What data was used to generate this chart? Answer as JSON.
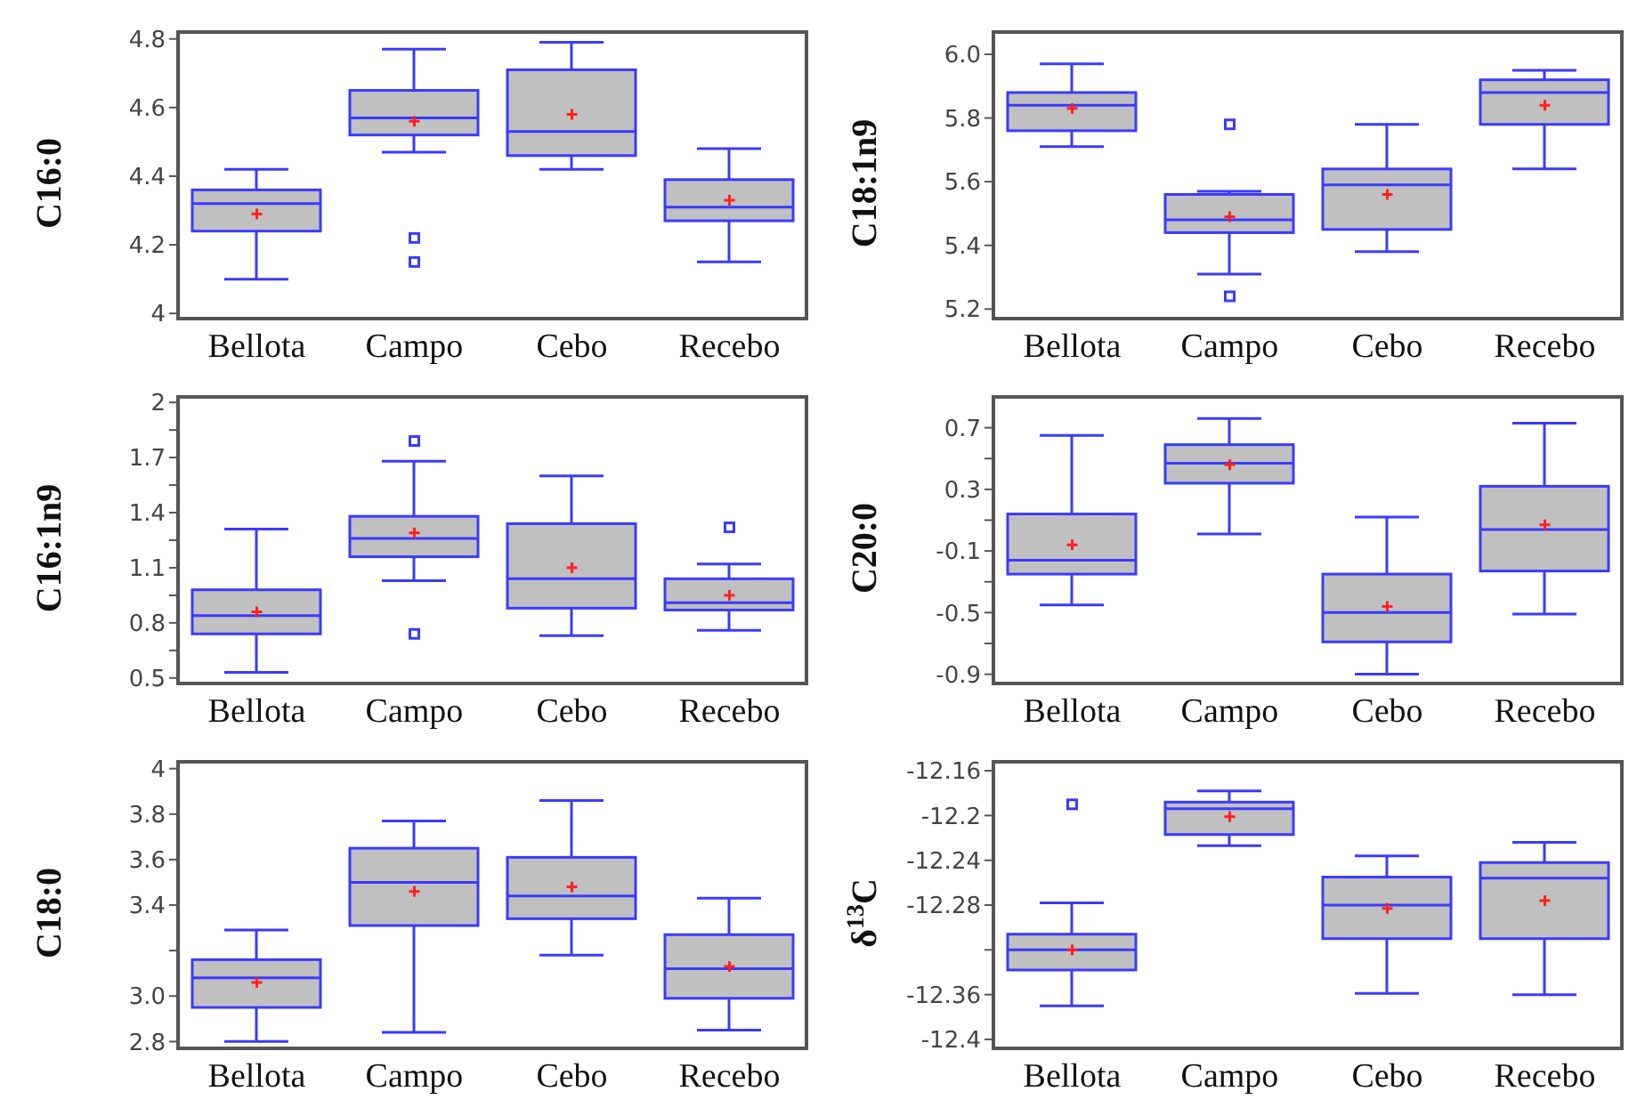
{
  "chart_data": [
    {
      "type": "box",
      "ylabel": "C16:0",
      "categories": [
        "Bellota",
        "Campo",
        "Cebo",
        "Recebo"
      ],
      "color": "#3a3aff",
      "ylim": [
        3.985,
        4.82
      ],
      "yticks": [
        4.0,
        4.2,
        4.4,
        4.6,
        4.8
      ],
      "grid": false,
      "boxes": [
        {
          "low": 4.1,
          "q1": 4.24,
          "median": 4.32,
          "q3": 4.36,
          "high": 4.42,
          "mean": 4.29
        },
        {
          "low": 4.47,
          "q1": 4.52,
          "median": 4.57,
          "q3": 4.65,
          "high": 4.77,
          "mean": 4.56,
          "outliers": [
            4.22,
            4.15
          ]
        },
        {
          "low": 4.42,
          "q1": 4.46,
          "median": 4.53,
          "q3": 4.71,
          "high": 4.79,
          "mean": 4.58
        },
        {
          "low": 4.15,
          "q1": 4.27,
          "median": 4.31,
          "q3": 4.39,
          "high": 4.48,
          "mean": 4.33
        }
      ]
    },
    {
      "type": "box",
      "ylabel": "C18:1n9",
      "categories": [
        "Bellota",
        "Campo",
        "Cebo",
        "Recebo"
      ],
      "color": "#3a3aff",
      "ylim": [
        5.17,
        6.07
      ],
      "yticks": [
        5.2,
        5.4,
        5.6,
        5.8,
        {
          "value": 6.0,
          "label": "6.0"
        }
      ],
      "grid": false,
      "boxes": [
        {
          "low": 5.71,
          "q1": 5.76,
          "median": 5.84,
          "q3": 5.88,
          "high": 5.97,
          "mean": 5.83
        },
        {
          "low": 5.31,
          "q1": 5.44,
          "median": 5.48,
          "q3": 5.56,
          "high": 5.57,
          "mean": 5.49,
          "outliers": [
            5.78,
            5.24
          ]
        },
        {
          "low": 5.38,
          "q1": 5.45,
          "median": 5.59,
          "q3": 5.64,
          "high": 5.78,
          "mean": 5.56
        },
        {
          "low": 5.64,
          "q1": 5.78,
          "median": 5.88,
          "q3": 5.92,
          "high": 5.95,
          "mean": 5.84
        }
      ]
    },
    {
      "type": "box",
      "ylabel": "C16:1n9",
      "categories": [
        "Bellota",
        "Campo",
        "Cebo",
        "Recebo"
      ],
      "color": "#3a3aff",
      "ylim": [
        0.47,
        2.03
      ],
      "yticks": [
        0.5,
        {
          "value": 0.65,
          "label": null
        },
        0.8,
        {
          "value": 0.95,
          "label": null
        },
        1.1,
        {
          "value": 1.25,
          "label": null
        },
        1.4,
        {
          "value": 1.55,
          "label": null
        },
        1.7,
        {
          "value": 1.85,
          "label": null
        },
        2
      ],
      "grid": false,
      "boxes": [
        {
          "low": 0.53,
          "q1": 0.74,
          "median": 0.84,
          "q3": 0.98,
          "high": 1.31,
          "mean": 0.86
        },
        {
          "low": 1.03,
          "q1": 1.16,
          "median": 1.26,
          "q3": 1.38,
          "high": 1.68,
          "mean": 1.29,
          "outliers": [
            1.79,
            0.74
          ]
        },
        {
          "low": 0.73,
          "q1": 0.88,
          "median": 1.04,
          "q3": 1.34,
          "high": 1.6,
          "mean": 1.1
        },
        {
          "low": 0.76,
          "q1": 0.87,
          "median": 0.91,
          "q3": 1.04,
          "high": 1.12,
          "mean": 0.95,
          "outliers": [
            1.32
          ]
        }
      ]
    },
    {
      "type": "box",
      "ylabel": "C20:0",
      "categories": [
        "Bellota",
        "Campo",
        "Cebo",
        "Recebo"
      ],
      "color": "#3a3aff",
      "ylim": [
        -0.96,
        0.9
      ],
      "yticks": [
        {
          "value": -0.9,
          "label": "-0.9"
        },
        {
          "value": -0.7,
          "label": null
        },
        {
          "value": -0.5,
          "label": "-0.5"
        },
        {
          "value": -0.3,
          "label": null
        },
        {
          "value": -0.1,
          "label": "-0.1"
        },
        {
          "value": 0.1,
          "label": null
        },
        0.3,
        {
          "value": 0.5,
          "label": null
        },
        0.7
      ],
      "grid": false,
      "boxes": [
        {
          "low": -0.45,
          "q1": -0.25,
          "median": -0.16,
          "q3": 0.14,
          "high": 0.65,
          "mean": -0.06
        },
        {
          "low": 0.01,
          "q1": 0.34,
          "median": 0.47,
          "q3": 0.59,
          "high": 0.76,
          "mean": 0.46
        },
        {
          "low": -0.9,
          "q1": -0.69,
          "median": -0.5,
          "q3": -0.25,
          "high": 0.12,
          "mean": -0.46
        },
        {
          "low": -0.51,
          "q1": -0.23,
          "median": 0.04,
          "q3": 0.32,
          "high": 0.73,
          "mean": 0.07
        }
      ]
    },
    {
      "type": "box",
      "ylabel": "C18:0",
      "categories": [
        "Bellota",
        "Campo",
        "Cebo",
        "Recebo"
      ],
      "color": "#3a3aff",
      "ylim": [
        2.77,
        4.03
      ],
      "yticks": [
        2.8,
        {
          "value": 3.0,
          "label": "3.0"
        },
        {
          "value": 3.2,
          "label": null
        },
        3.4,
        3.6,
        3.8,
        {
          "value": 4.0,
          "label": "4"
        }
      ],
      "grid": false,
      "boxes": [
        {
          "low": 2.8,
          "q1": 2.95,
          "median": 3.08,
          "q3": 3.16,
          "high": 3.29,
          "mean": 3.06
        },
        {
          "low": 2.84,
          "q1": 3.31,
          "median": 3.5,
          "q3": 3.65,
          "high": 3.77,
          "mean": 3.46
        },
        {
          "low": 3.18,
          "q1": 3.34,
          "median": 3.44,
          "q3": 3.61,
          "high": 3.86,
          "mean": 3.48
        },
        {
          "low": 2.85,
          "q1": 2.99,
          "median": 3.12,
          "q3": 3.27,
          "high": 3.43,
          "mean": 3.13
        }
      ]
    },
    {
      "type": "box",
      "ylabel": "δ$^{13}$C",
      "categories": [
        "Bellota",
        "Campo",
        "Cebo",
        "Recebo"
      ],
      "color": "#3a3aff",
      "ylim": [
        -12.408,
        -12.152
      ],
      "yticks": [
        {
          "value": -12.4,
          "label": "-12.4"
        },
        {
          "value": -12.36,
          "label": "-12.36"
        },
        {
          "value": -12.32,
          "label": null
        },
        {
          "value": -12.28,
          "label": "-12.28"
        },
        {
          "value": -12.24,
          "label": "-12.24"
        },
        {
          "value": -12.2,
          "label": "-12.2"
        },
        {
          "value": -12.16,
          "label": "-12.16"
        }
      ],
      "grid": false,
      "boxes": [
        {
          "low": -12.37,
          "q1": -12.338,
          "median": -12.32,
          "q3": -12.306,
          "high": -12.278,
          "mean": -12.32,
          "outliers": [
            -12.19
          ]
        },
        {
          "low": -12.227,
          "q1": -12.217,
          "median": -12.194,
          "q3": -12.188,
          "high": -12.178,
          "mean": -12.201
        },
        {
          "low": -12.359,
          "q1": -12.31,
          "median": -12.28,
          "q3": -12.255,
          "high": -12.236,
          "mean": -12.283
        },
        {
          "low": -12.36,
          "q1": -12.31,
          "median": -12.256,
          "q3": -12.242,
          "high": -12.224,
          "mean": -12.276
        }
      ]
    }
  ]
}
